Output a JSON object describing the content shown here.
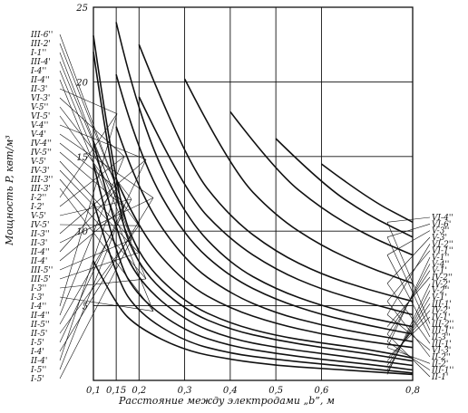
{
  "chart_data": {
    "type": "line",
    "title": "",
    "xlabel": "Расстояние между электродами „b”, м",
    "ylabel": "Мощность P, квт/м³",
    "x_ticks": [
      0.1,
      0.15,
      0.2,
      0.3,
      0.4,
      0.5,
      0.6,
      0.8
    ],
    "x_tick_labels": [
      "0,1",
      "0,15",
      "0,2",
      "0,3",
      "0,4",
      "0,5",
      "0,6",
      "0,8"
    ],
    "y_ticks": [
      0,
      5,
      10,
      15,
      20,
      25
    ],
    "y_tick_labels": [
      "",
      "5",
      "10",
      "15",
      "20",
      "25"
    ],
    "xlim": [
      0.1,
      0.8
    ],
    "ylim": [
      0,
      25
    ],
    "grid": true,
    "left_labels": [
      "III-6''",
      "III-2'",
      "I-1''",
      "III-4'",
      "I-4''",
      "II-4''",
      "II-3'",
      "VI-3'",
      "V-5''",
      "VI-5'",
      "V-4''",
      "V-4'",
      "IV-4''",
      "IV-5''",
      "V-5'",
      "IV-3'",
      "III-3''",
      "III-3'",
      "I-2''",
      "I-2'",
      "V-5'",
      "IV-5'",
      "II-3''",
      "II-3'",
      "II-4''",
      "II-4'",
      "III-5''",
      "III-5'",
      "I-3''",
      "I-3'",
      "I-4''",
      "II-4''",
      "II-5''",
      "II-5'",
      "I-5'",
      "I-4'",
      "II-4'",
      "I-5''",
      "I-5'"
    ],
    "right_labels": [
      "VI-4''",
      "VI-6'",
      "V-3''",
      "V-3'",
      "VI-2''",
      "VI-1''",
      "V-1''",
      "V-4''",
      "V-1'",
      "IV-2''",
      "IV-2'",
      "V-2''",
      "V-1'",
      "III-1'",
      "IV-2'",
      "IV-1'",
      "III-2''",
      "III-1''",
      "II-3''",
      "III-1'",
      "VI-3'",
      "II-2''",
      "II-2'",
      "III-1''",
      "II-1'"
    ],
    "series": [
      {
        "values": [
          [
            0.1,
            23.1
          ],
          [
            0.15,
            12.5
          ],
          [
            0.2,
            8.2
          ],
          [
            0.3,
            5.2
          ],
          [
            0.4,
            3.8
          ],
          [
            0.5,
            3.0
          ],
          [
            0.6,
            2.5
          ],
          [
            0.7,
            2.1
          ],
          [
            0.8,
            1.5
          ]
        ]
      },
      {
        "values": [
          [
            0.1,
            22.0
          ],
          [
            0.15,
            11.6
          ],
          [
            0.2,
            7.5
          ],
          [
            0.3,
            4.7
          ],
          [
            0.4,
            3.4
          ],
          [
            0.5,
            2.7
          ],
          [
            0.6,
            2.2
          ],
          [
            0.7,
            1.8
          ],
          [
            0.8,
            1.3
          ]
        ]
      },
      {
        "values": [
          [
            0.1,
            16.0
          ],
          [
            0.15,
            9.8
          ],
          [
            0.2,
            6.6
          ],
          [
            0.3,
            4.0
          ],
          [
            0.4,
            2.8
          ],
          [
            0.5,
            2.2
          ],
          [
            0.6,
            1.8
          ],
          [
            0.7,
            1.4
          ],
          [
            0.8,
            1.0
          ]
        ]
      },
      {
        "values": [
          [
            0.1,
            14.5
          ],
          [
            0.15,
            8.2
          ],
          [
            0.2,
            5.5
          ],
          [
            0.3,
            3.3
          ],
          [
            0.4,
            2.3
          ],
          [
            0.5,
            1.8
          ],
          [
            0.6,
            1.4
          ],
          [
            0.7,
            1.1
          ],
          [
            0.8,
            0.7
          ]
        ]
      },
      {
        "values": [
          [
            0.1,
            12.0
          ],
          [
            0.15,
            6.8
          ],
          [
            0.2,
            4.5
          ],
          [
            0.3,
            2.6
          ],
          [
            0.4,
            1.8
          ],
          [
            0.5,
            1.4
          ],
          [
            0.6,
            1.1
          ],
          [
            0.7,
            0.8
          ],
          [
            0.8,
            0.5
          ]
        ]
      },
      {
        "values": [
          [
            0.1,
            8.0
          ],
          [
            0.15,
            5.0
          ],
          [
            0.2,
            3.5
          ],
          [
            0.3,
            2.0
          ],
          [
            0.4,
            1.4
          ],
          [
            0.5,
            1.0
          ],
          [
            0.6,
            0.8
          ],
          [
            0.7,
            0.6
          ],
          [
            0.8,
            0.4
          ]
        ]
      },
      {
        "values": [
          [
            0.15,
            24.0
          ],
          [
            0.2,
            17.5
          ],
          [
            0.3,
            11.0
          ],
          [
            0.4,
            7.8
          ],
          [
            0.5,
            6.1
          ],
          [
            0.6,
            5.0
          ],
          [
            0.7,
            4.2
          ],
          [
            0.8,
            3.6
          ]
        ]
      },
      {
        "values": [
          [
            0.15,
            20.5
          ],
          [
            0.2,
            15.0
          ],
          [
            0.3,
            9.6
          ],
          [
            0.4,
            6.9
          ],
          [
            0.5,
            5.4
          ],
          [
            0.6,
            4.4
          ],
          [
            0.7,
            3.7
          ],
          [
            0.8,
            3.1
          ]
        ]
      },
      {
        "values": [
          [
            0.15,
            17.0
          ],
          [
            0.2,
            12.5
          ],
          [
            0.3,
            8.0
          ],
          [
            0.4,
            5.8
          ],
          [
            0.5,
            4.5
          ],
          [
            0.6,
            3.7
          ],
          [
            0.7,
            3.1
          ],
          [
            0.8,
            2.6
          ]
        ]
      },
      {
        "values": [
          [
            0.15,
            13.5
          ],
          [
            0.2,
            10.0
          ],
          [
            0.3,
            6.5
          ],
          [
            0.4,
            4.8
          ],
          [
            0.5,
            3.8
          ],
          [
            0.6,
            3.1
          ],
          [
            0.7,
            2.6
          ],
          [
            0.8,
            2.2
          ]
        ]
      },
      {
        "values": [
          [
            0.2,
            22.5
          ],
          [
            0.3,
            14.8
          ],
          [
            0.4,
            10.9
          ],
          [
            0.5,
            8.6
          ],
          [
            0.6,
            7.1
          ],
          [
            0.7,
            6.1
          ],
          [
            0.8,
            5.3
          ]
        ]
      },
      {
        "values": [
          [
            0.2,
            19.0
          ],
          [
            0.3,
            12.6
          ],
          [
            0.4,
            9.4
          ],
          [
            0.5,
            7.4
          ],
          [
            0.6,
            6.1
          ],
          [
            0.7,
            5.2
          ],
          [
            0.8,
            4.4
          ]
        ]
      },
      {
        "values": [
          [
            0.3,
            20.2
          ],
          [
            0.4,
            14.2
          ],
          [
            0.5,
            11.0
          ],
          [
            0.6,
            9.0
          ],
          [
            0.7,
            7.6
          ],
          [
            0.8,
            6.5
          ]
        ]
      },
      {
        "values": [
          [
            0.4,
            18.0
          ],
          [
            0.5,
            14.0
          ],
          [
            0.6,
            11.5
          ],
          [
            0.7,
            9.7
          ],
          [
            0.8,
            8.4
          ]
        ]
      },
      {
        "values": [
          [
            0.5,
            16.2
          ],
          [
            0.6,
            13.2
          ],
          [
            0.7,
            11.1
          ],
          [
            0.8,
            9.6
          ]
        ]
      },
      {
        "values": [
          [
            0.6,
            14.5
          ],
          [
            0.7,
            12.2
          ],
          [
            0.8,
            10.6
          ]
        ]
      }
    ]
  }
}
